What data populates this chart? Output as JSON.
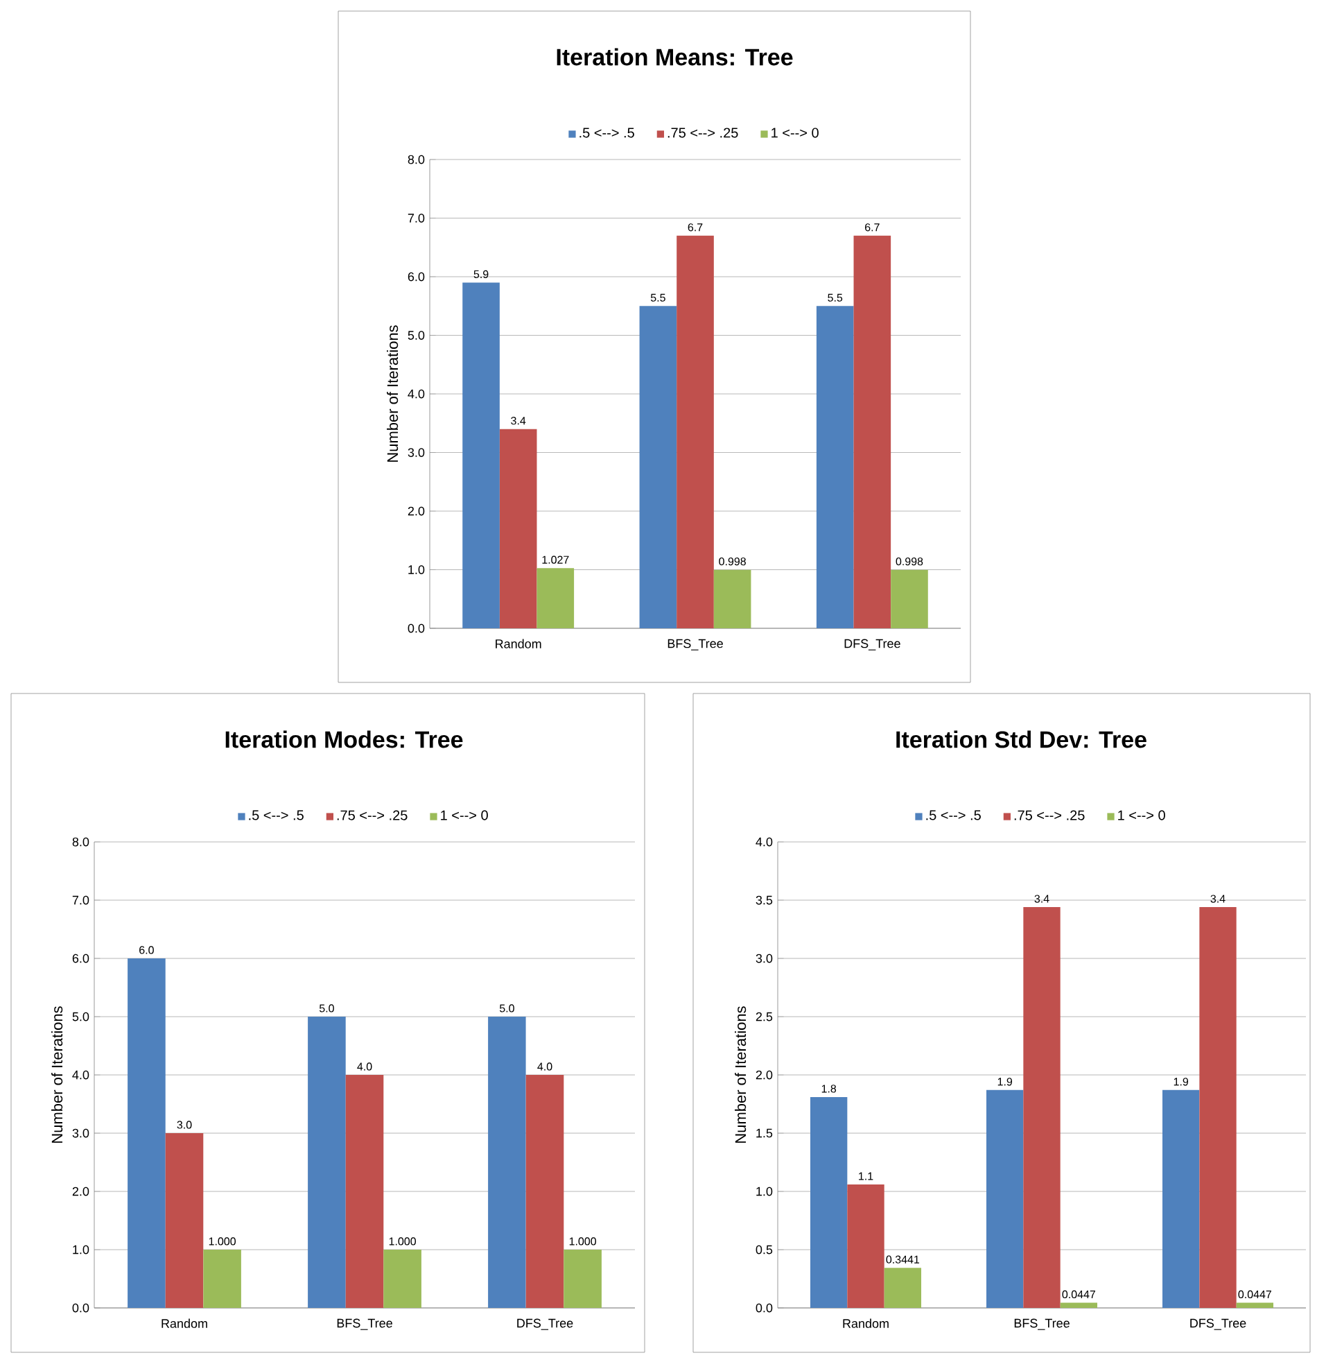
{
  "chart_data": [
    {
      "type": "bar",
      "title": "Iteration Means: Tree",
      "ylabel": "Number of Iterations",
      "categories": [
        "Random",
        "BFS_Tree",
        "DFS_Tree"
      ],
      "grid": "y",
      "legend": "top",
      "ylim": [
        0,
        8
      ],
      "yticks": [
        {
          "value": 0,
          "label": "0.0"
        },
        {
          "value": 1,
          "label": "1.0"
        },
        {
          "value": 2,
          "label": "2.0"
        },
        {
          "value": 3,
          "label": "3.0"
        },
        {
          "value": 4,
          "label": "4.0"
        },
        {
          "value": 5,
          "label": "5.0"
        },
        {
          "value": 6,
          "label": "6.0"
        },
        {
          "value": 7,
          "label": "7.0"
        },
        {
          "value": 8,
          "label": "8.0"
        }
      ],
      "series": [
        {
          "name": ".5 <--> .5",
          "color": "#4f81bd",
          "values": [
            5.9,
            5.5,
            5.5
          ],
          "value_labels": [
            "5.9",
            "5.5",
            "5.5"
          ]
        },
        {
          "name": ".75 <--> .25",
          "color": "#c0504d",
          "values": [
            3.4,
            6.7,
            6.7
          ],
          "value_labels": [
            "3.4",
            "6.7",
            "6.7"
          ]
        },
        {
          "name": "1 <--> 0",
          "color": "#9bbb59",
          "values": [
            1.027,
            0.998,
            0.998
          ],
          "value_labels": [
            "1.027",
            "0.998",
            "0.998"
          ]
        }
      ]
    },
    {
      "type": "bar",
      "title": "Iteration Modes: Tree",
      "ylabel": "Number of Iterations",
      "categories": [
        "Random",
        "BFS_Tree",
        "DFS_Tree"
      ],
      "grid": "y",
      "legend": "top",
      "ylim": [
        0,
        8
      ],
      "yticks": [
        {
          "value": 0,
          "label": "0.0"
        },
        {
          "value": 1,
          "label": "1.0"
        },
        {
          "value": 2,
          "label": "2.0"
        },
        {
          "value": 3,
          "label": "3.0"
        },
        {
          "value": 4,
          "label": "4.0"
        },
        {
          "value": 5,
          "label": "5.0"
        },
        {
          "value": 6,
          "label": "6.0"
        },
        {
          "value": 7,
          "label": "7.0"
        },
        {
          "value": 8,
          "label": "8.0"
        }
      ],
      "series": [
        {
          "name": ".5 <--> .5",
          "color": "#4f81bd",
          "values": [
            6.0,
            5.0,
            5.0
          ],
          "value_labels": [
            "6.0",
            "5.0",
            "5.0"
          ]
        },
        {
          "name": ".75 <--> .25",
          "color": "#c0504d",
          "values": [
            3.0,
            4.0,
            4.0
          ],
          "value_labels": [
            "3.0",
            "4.0",
            "4.0"
          ]
        },
        {
          "name": "1 <--> 0",
          "color": "#9bbb59",
          "values": [
            1.0,
            1.0,
            1.0
          ],
          "value_labels": [
            "1.000",
            "1.000",
            "1.000"
          ]
        }
      ]
    },
    {
      "type": "bar",
      "title": "Iteration Std Dev: Tree",
      "ylabel": "Number of Iterations",
      "categories": [
        "Random",
        "BFS_Tree",
        "DFS_Tree"
      ],
      "grid": "y",
      "legend": "top",
      "ylim": [
        0,
        4
      ],
      "yticks": [
        {
          "value": 0,
          "label": "0.0"
        },
        {
          "value": 0.5,
          "label": "0.5"
        },
        {
          "value": 1,
          "label": "1.0"
        },
        {
          "value": 1.5,
          "label": "1.5"
        },
        {
          "value": 2,
          "label": "2.0"
        },
        {
          "value": 2.5,
          "label": "2.5"
        },
        {
          "value": 3,
          "label": "3.0"
        },
        {
          "value": 3.5,
          "label": "3.5"
        },
        {
          "value": 4,
          "label": "4.0"
        }
      ],
      "series": [
        {
          "name": ".5 <--> .5",
          "color": "#4f81bd",
          "values": [
            1.81,
            1.87,
            1.87
          ],
          "value_labels": [
            "1.8",
            "1.9",
            "1.9"
          ]
        },
        {
          "name": ".75 <--> .25",
          "color": "#c0504d",
          "values": [
            1.06,
            3.44,
            3.44
          ],
          "value_labels": [
            "1.1",
            "3.4",
            "3.4"
          ]
        },
        {
          "name": "1 <--> 0",
          "color": "#9bbb59",
          "values": [
            0.3441,
            0.0447,
            0.0447
          ],
          "value_labels": [
            "0.3441",
            "0.0447",
            "0.0447"
          ]
        }
      ]
    }
  ]
}
